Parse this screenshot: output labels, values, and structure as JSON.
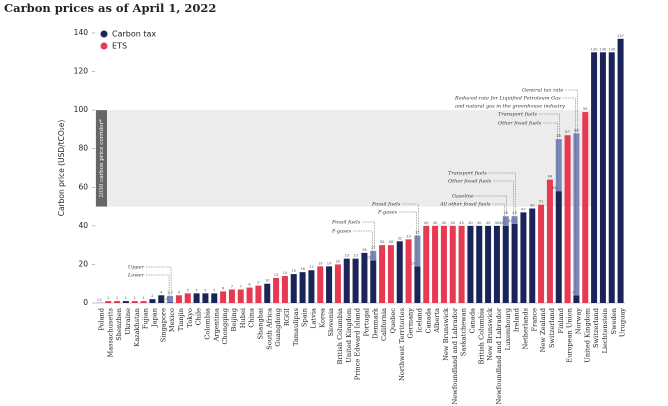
{
  "chart_data": {
    "type": "bar",
    "title": "Carbon prices as of April 1, 2022",
    "y_label": "Carbon price (USD/tCO₂e)",
    "series": [
      {
        "name": "Carbon tax",
        "color": "#1b2459"
      },
      {
        "name": "ETS",
        "color": "#e63a52"
      }
    ],
    "split_color": "#7a87b8",
    "band": {
      "range": [
        50,
        100
      ],
      "label": "2030 carbon price corridor*",
      "color": "#ececec"
    },
    "categories": [
      "Poland",
      "Massachusetts",
      "Shenzhen",
      "Ukraine",
      "Kazakhstan",
      "Fujian",
      "Japan",
      "Singapore",
      "Mexico",
      "Tianjin",
      "Tokyo",
      "Chile",
      "Colombia",
      "Argentina",
      "Chongqing",
      "Beijing",
      "Hubei",
      "China",
      "Shanghai",
      "South Africa",
      "Guangdong",
      "RGGI",
      "Tamaulipas",
      "Spain",
      "Latvia",
      "Korea",
      "Slovenia",
      "British Columbia",
      "United Kingdom",
      "Prince Edward Island",
      "Portugal",
      "Denmark",
      "California",
      "Quebec",
      "Northwest Territories",
      "Germany",
      "Iceland",
      "Canada",
      "Alberta",
      "New Brunswick",
      "Newfoundland and Labrador",
      "Saskatchewan",
      "Canada",
      "British Columbia",
      "New Brunswick",
      "Newfoundland and Labrador",
      "Luxembourg",
      "Ireland",
      "Netherlands",
      "France",
      "New Zealand",
      "Switzerland",
      "Finland",
      "European Union",
      "Norway",
      "United Kingdom",
      "Switzerland",
      "Liechtenstein",
      "Sweden",
      "Uruguay"
    ],
    "bar_series": [
      0,
      1,
      1,
      0,
      1,
      1,
      0,
      0,
      0,
      1,
      1,
      0,
      0,
      0,
      1,
      1,
      1,
      1,
      1,
      0,
      1,
      1,
      0,
      0,
      0,
      1,
      0,
      1,
      0,
      0,
      0,
      0,
      1,
      1,
      0,
      1,
      0,
      1,
      1,
      1,
      1,
      1,
      0,
      0,
      0,
      0,
      0,
      0,
      0,
      0,
      1,
      1,
      0,
      1,
      0,
      1,
      0,
      0,
      0,
      0
    ],
    "values": [
      0.08,
      1,
      1,
      1,
      1,
      1,
      2,
      4,
      3.7,
      4,
      5,
      5,
      5,
      5,
      6,
      7,
      7,
      8,
      9,
      10,
      13,
      14,
      15,
      16,
      17,
      19,
      19,
      20,
      23,
      23,
      26,
      27,
      30,
      30,
      32,
      33,
      35,
      40,
      40,
      40,
      40,
      40,
      40,
      40,
      40,
      40,
      45,
      45,
      47,
      49,
      51,
      64,
      85,
      87,
      88,
      99,
      130,
      130,
      130,
      137
    ],
    "value_labels": [
      "<1",
      "1",
      "1",
      "1",
      "1",
      "1",
      "2",
      "4",
      "3.7",
      "4",
      "5",
      "5",
      "5",
      "5",
      "6",
      "7",
      "7",
      "8",
      "9",
      "10",
      "13",
      "14",
      "15",
      "16",
      "17",
      "19",
      "19",
      "20",
      "23",
      "23",
      "26",
      "27",
      "30",
      "30",
      "32",
      "33",
      "35",
      "40",
      "40",
      "40",
      "40",
      "40",
      "40",
      "40",
      "40",
      "40",
      "45",
      "45",
      "47",
      "49",
      "51",
      "64",
      "85",
      "87",
      "88",
      "99",
      "130",
      "130",
      "130",
      "137"
    ],
    "values_low": [
      null,
      null,
      null,
      null,
      null,
      null,
      null,
      null,
      0.4,
      null,
      null,
      null,
      null,
      null,
      null,
      null,
      null,
      null,
      null,
      null,
      null,
      null,
      null,
      null,
      null,
      null,
      null,
      null,
      null,
      null,
      null,
      22,
      null,
      null,
      null,
      null,
      19,
      null,
      null,
      null,
      null,
      null,
      null,
      null,
      null,
      null,
      40,
      41,
      null,
      null,
      null,
      null,
      58,
      null,
      4,
      null,
      null,
      null,
      null,
      null
    ],
    "ylim": [
      0,
      140
    ],
    "yticks": [
      0,
      20,
      40,
      60,
      80,
      100,
      120,
      140
    ],
    "grid": false,
    "legend": "top-left",
    "annotations": [
      "Upper",
      "Lower",
      "Fossil fuels",
      "F-gases",
      "Fossil fuels",
      "F-gases",
      "Gasoline",
      "All other fossil fuels",
      "Transport fuels",
      "Other fossil fuels",
      "Transport fuels",
      "Other fossil fuels",
      "General tax rate",
      "Reduced rate for Liquified Petroleum Gas",
      "and natural gas in the greenhouse industry"
    ]
  }
}
